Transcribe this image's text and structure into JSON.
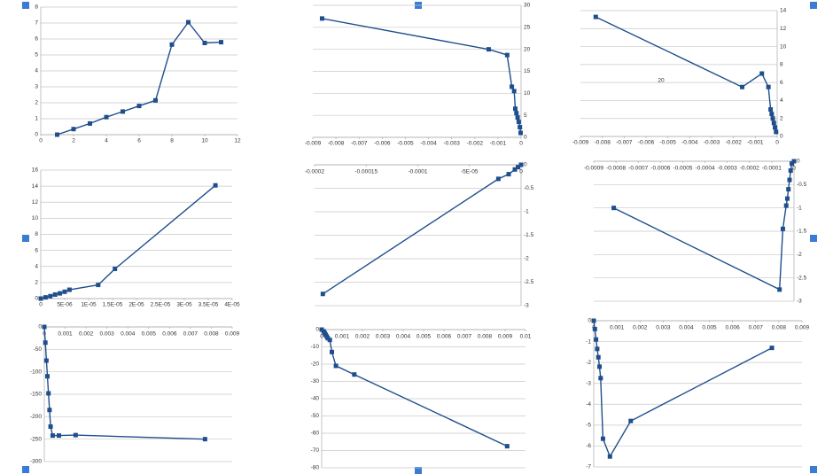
{
  "chart_data": [
    {
      "type": "line",
      "color": "#1f4e8c",
      "grid": true,
      "x": [
        1,
        2,
        3,
        4,
        5,
        6,
        7,
        8,
        9,
        10,
        11
      ],
      "values": [
        0,
        0.35,
        0.7,
        1.1,
        1.45,
        1.8,
        2.15,
        5.65,
        7.05,
        5.75,
        5.8
      ],
      "xlim": [
        0,
        12
      ],
      "xticks": [
        0,
        2,
        4,
        6,
        8,
        10,
        12
      ],
      "ylim": [
        0,
        8
      ],
      "yticks": [
        0,
        1,
        2,
        3,
        4,
        5,
        6,
        7,
        8
      ]
    },
    {
      "type": "line",
      "color": "#1f4e8c",
      "grid": true,
      "x": [
        -0.0086,
        -0.0014,
        -0.0006,
        -0.0004,
        -0.0003,
        -0.00025,
        -0.0002,
        -0.00015,
        -0.0001,
        -5e-05,
        -2e-05
      ],
      "values": [
        27,
        20,
        18.7,
        11.5,
        10.5,
        6.5,
        5.5,
        4.5,
        3.5,
        2.3,
        1
      ],
      "xlim": [
        -0.009,
        0
      ],
      "xticks": [
        -0.009,
        -0.008,
        -0.007,
        -0.006,
        -0.005,
        -0.004,
        -0.003,
        -0.002,
        -0.001,
        0
      ],
      "ylim": [
        0,
        30
      ],
      "yticks": [
        0,
        5,
        10,
        15,
        20,
        25,
        30
      ]
    },
    {
      "type": "line",
      "color": "#1f4e8c",
      "grid": true,
      "annotation": "20",
      "x": [
        -0.0083,
        -0.0016,
        -0.0007,
        -0.0004,
        -0.0003,
        -0.00025,
        -0.0002,
        -0.00015,
        -0.0001,
        -5e-05
      ],
      "values": [
        13.3,
        5.5,
        7,
        5.5,
        3,
        2.5,
        2,
        1.5,
        1,
        0.5
      ],
      "xlim": [
        -0.009,
        0
      ],
      "xticks": [
        -0.009,
        -0.008,
        -0.007,
        -0.006,
        -0.005,
        -0.004,
        -0.003,
        -0.002,
        -0.001,
        0
      ],
      "ylim": [
        0,
        14
      ],
      "yticks": [
        0,
        2,
        4,
        6,
        8,
        10,
        12,
        14
      ]
    },
    {
      "type": "line",
      "color": "#1f4e8c",
      "grid": true,
      "x": [
        0,
        1e-06,
        2e-06,
        3e-06,
        4e-06,
        5e-06,
        6e-06,
        1.2e-05,
        1.55e-05,
        3.65e-05
      ],
      "values": [
        0,
        0.15,
        0.3,
        0.5,
        0.65,
        0.85,
        1.1,
        1.7,
        3.7,
        14.1
      ],
      "xlim": [
        0,
        4e-05
      ],
      "xticks": [
        0,
        {
          "value": 5e-06,
          "label": "5E-06"
        },
        {
          "value": 1e-05,
          "label": "1E-05"
        },
        {
          "value": 1.5e-05,
          "label": "1.5E-05"
        },
        {
          "value": 2e-05,
          "label": "2E-05"
        },
        {
          "value": 2.5e-05,
          "label": "2.5E-05"
        },
        {
          "value": 3e-05,
          "label": "3E-05"
        },
        {
          "value": 3.5e-05,
          "label": "3.5E-05"
        },
        {
          "value": 4e-05,
          "label": "4E-05"
        }
      ],
      "ylim": [
        0,
        16
      ],
      "yticks": [
        0,
        2,
        4,
        6,
        8,
        10,
        12,
        14,
        16
      ]
    },
    {
      "type": "line",
      "color": "#1f4e8c",
      "grid": true,
      "x": [
        -0.000192,
        -2.2e-05,
        -1.2e-05,
        -6e-06,
        -3e-06,
        0
      ],
      "values": [
        -2.75,
        -0.3,
        -0.2,
        -0.1,
        -0.05,
        0
      ],
      "xlim": [
        -0.0002,
        0
      ],
      "xticks": [
        -0.0002,
        -0.00015,
        -0.0001,
        {
          "value": -5e-05,
          "label": "-5E-05"
        },
        0
      ],
      "ylim": [
        -3,
        0
      ],
      "yticks": [
        -3,
        -2.5,
        -2,
        -1.5,
        -1,
        -0.5,
        0
      ]
    },
    {
      "type": "line",
      "color": "#1f4e8c",
      "grid": true,
      "x": [
        -0.00081,
        -6.5e-05,
        -5e-05,
        -3.5e-05,
        -3e-05,
        -2.5e-05,
        -2e-05,
        -1.5e-05,
        -1e-05,
        0
      ],
      "values": [
        -1,
        -2.75,
        -1.45,
        -0.95,
        -0.8,
        -0.6,
        -0.4,
        -0.2,
        -0.05,
        0
      ],
      "xlim": [
        -0.0009,
        0
      ],
      "xticks": [
        -0.0009,
        -0.0008,
        -0.0007,
        -0.0006,
        -0.0005,
        -0.0004,
        -0.0003,
        -0.0002,
        -0.0001,
        0
      ],
      "ylim": [
        -3,
        0
      ],
      "yticks": [
        -3,
        -2.5,
        -2,
        -1.5,
        -1,
        -0.5,
        0
      ]
    },
    {
      "type": "line",
      "color": "#1f4e8c",
      "grid": true,
      "x": [
        0,
        5e-05,
        0.0001,
        0.00015,
        0.0002,
        0.00025,
        0.0003,
        0.0004,
        0.0007,
        0.0015,
        0.0077
      ],
      "values": [
        0,
        -35,
        -75,
        -110,
        -148,
        -185,
        -222,
        -242,
        -242,
        -241,
        -250
      ],
      "xlim": [
        0,
        0.009
      ],
      "xticks": [
        0,
        0.001,
        0.002,
        0.003,
        0.004,
        0.005,
        0.006,
        0.007,
        0.008,
        0.009
      ],
      "ylim": [
        -300,
        0
      ],
      "yticks": [
        -300,
        -250,
        -200,
        -150,
        -100,
        -50,
        0
      ]
    },
    {
      "type": "line",
      "color": "#1f4e8c",
      "grid": true,
      "x": [
        0,
        0.0001,
        0.00015,
        0.0002,
        0.00025,
        0.0003,
        0.0004,
        0.0005,
        0.0007,
        0.0016,
        0.0091
      ],
      "values": [
        0,
        -1,
        -2,
        -3,
        -4,
        -5,
        -6,
        -13,
        -21,
        -26,
        -67.5
      ],
      "xlim": [
        0,
        0.01
      ],
      "xticks": [
        0,
        0.001,
        0.002,
        0.003,
        0.004,
        0.005,
        0.006,
        0.007,
        0.008,
        0.009,
        0.01
      ],
      "ylim": [
        -80,
        0
      ],
      "yticks": [
        -80,
        -70,
        -60,
        -50,
        -40,
        -30,
        -20,
        -10,
        0
      ]
    },
    {
      "type": "line",
      "color": "#1f4e8c",
      "grid": true,
      "x": [
        0,
        5e-05,
        0.0001,
        0.00015,
        0.0002,
        0.00025,
        0.0003,
        0.0004,
        0.0007,
        0.0016,
        0.0077
      ],
      "values": [
        0,
        -0.4,
        -0.9,
        -1.35,
        -1.75,
        -2.2,
        -2.75,
        -5.65,
        -6.5,
        -4.8,
        -1.3
      ],
      "xlim": [
        0,
        0.009
      ],
      "xticks": [
        0,
        0.001,
        0.002,
        0.003,
        0.004,
        0.005,
        0.006,
        0.007,
        0.008,
        0.009
      ],
      "ylim": [
        -7,
        0
      ],
      "yticks": [
        -7,
        -6,
        -5,
        -4,
        -3,
        -2,
        -1,
        0
      ]
    }
  ]
}
